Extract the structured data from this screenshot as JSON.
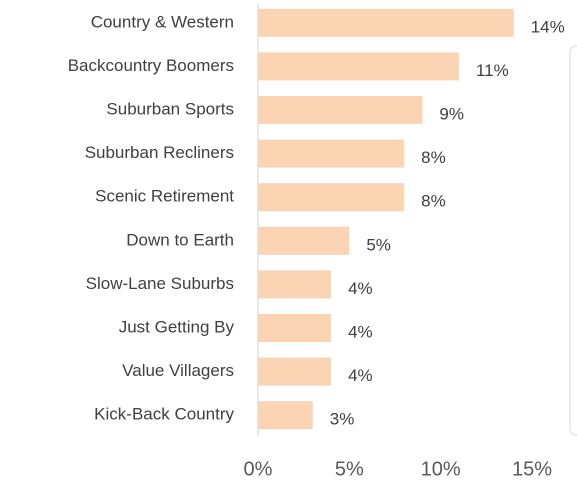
{
  "chart_data": {
    "type": "hbar",
    "categories": [
      "Country & Western",
      "Backcountry Boomers",
      "Suburban Sports",
      "Suburban Recliners",
      "Scenic Retirement",
      "Down to Earth",
      "Slow-Lane Suburbs",
      "Just Getting By",
      "Value Villagers",
      "Kick-Back Country"
    ],
    "values": [
      14,
      11,
      9,
      8,
      8,
      5,
      4,
      4,
      4,
      3
    ],
    "value_labels": [
      "14%",
      "11%",
      "9%",
      "8%",
      "8%",
      "5%",
      "4%",
      "4%",
      "4%",
      "3%"
    ],
    "color": "#fbd4b4",
    "xlim": [
      0,
      15
    ],
    "xticks": [
      {
        "value": 0,
        "label": "0%"
      },
      {
        "value": 5,
        "label": "5%"
      },
      {
        "value": 10,
        "label": "10%"
      },
      {
        "value": 15,
        "label": "15%"
      }
    ],
    "grid": false
  }
}
